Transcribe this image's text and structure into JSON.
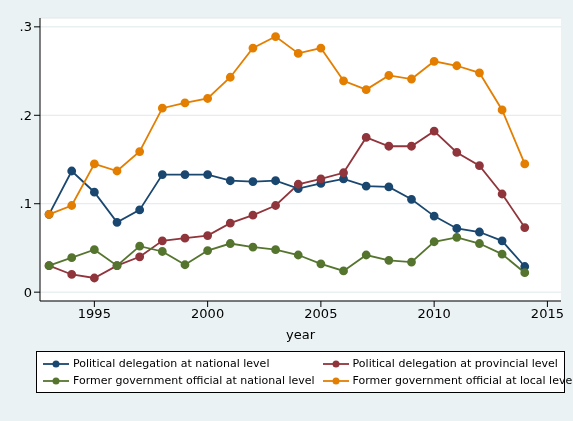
{
  "chart_data": {
    "type": "line",
    "x_label": "year",
    "x": [
      1993,
      1994,
      1995,
      1996,
      1997,
      1998,
      1999,
      2000,
      2001,
      2002,
      2003,
      2004,
      2005,
      2006,
      2007,
      2008,
      2009,
      2010,
      2011,
      2012,
      2013,
      2014
    ],
    "xlim": [
      1992.6,
      2015.6
    ],
    "xticks": [
      1995,
      2000,
      2005,
      2010,
      2015
    ],
    "ylim": [
      -0.01,
      0.31
    ],
    "yticks": [
      0,
      {
        "value": 0.1,
        "label": ".1"
      },
      {
        "value": 0.2,
        "label": ".2"
      },
      {
        "value": 0.3,
        "label": ".3"
      }
    ],
    "grid": true,
    "legend": "bottom",
    "marker": "circle",
    "series": [
      {
        "name": "Political delegation at national level",
        "color": "#1a476f",
        "values": [
          0.088,
          0.137,
          0.113,
          0.079,
          0.093,
          0.133,
          0.133,
          0.133,
          0.126,
          0.125,
          0.126,
          0.117,
          0.123,
          0.128,
          0.12,
          0.119,
          0.105,
          0.086,
          0.072,
          0.068,
          0.058,
          0.029
        ]
      },
      {
        "name": "Political delegation at provincial level",
        "color": "#90353b",
        "values": [
          0.03,
          0.02,
          0.016,
          0.03,
          0.04,
          0.058,
          0.061,
          0.064,
          0.078,
          0.087,
          0.098,
          0.122,
          0.128,
          0.135,
          0.175,
          0.165,
          0.165,
          0.182,
          0.158,
          0.143,
          0.111,
          0.073
        ]
      },
      {
        "name": "Former government official at national level",
        "color": "#55752f",
        "values": [
          0.03,
          0.039,
          0.048,
          0.03,
          0.052,
          0.046,
          0.031,
          0.047,
          0.055,
          0.051,
          0.048,
          0.042,
          0.032,
          0.024,
          0.042,
          0.036,
          0.034,
          0.057,
          0.062,
          0.055,
          0.043,
          0.022
        ]
      },
      {
        "name": "Former government official at local level",
        "color": "#e37e00",
        "values": [
          0.088,
          0.098,
          0.145,
          0.137,
          0.159,
          0.208,
          0.214,
          0.219,
          0.243,
          0.276,
          0.289,
          0.27,
          0.276,
          0.239,
          0.229,
          0.245,
          0.241,
          0.261,
          0.256,
          0.248,
          0.206,
          0.145
        ]
      }
    ]
  }
}
